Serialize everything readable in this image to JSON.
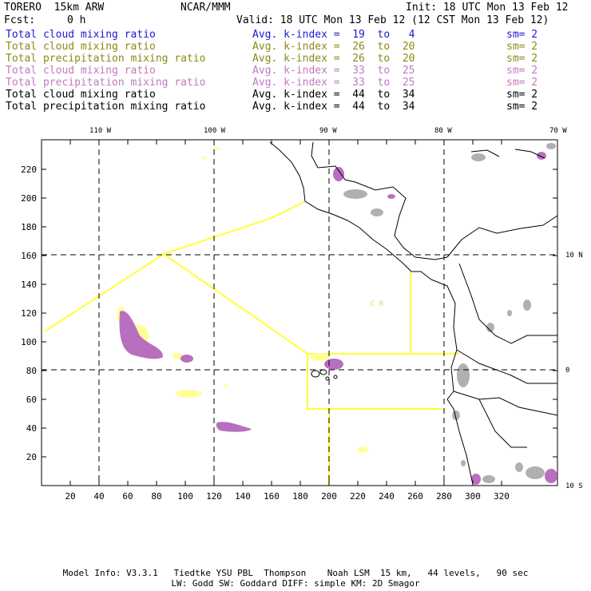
{
  "header": {
    "model": "TORERO  15km ARW",
    "center": "NCAR/MMM",
    "init": "Init: 18 UTC Mon 13 Feb 12",
    "fcst_label": "Fcst:",
    "fcst_value": "0 h",
    "valid": "Valid: 18 UTC Mon 13 Feb 12 (12 CST Mon 13 Feb 12)"
  },
  "legend": [
    {
      "field": "Total cloud mixing ratio",
      "kindex": "Avg. k-index =  19  to   4",
      "sm": "sm= 2",
      "color": "#1a1ad0"
    },
    {
      "field": "Total cloud mixing ratio",
      "kindex": "Avg. k-index =  26  to  20",
      "sm": "sm= 2",
      "color": "#8a8a1a"
    },
    {
      "field": "Total precipitation mixing ratio",
      "kindex": "Avg. k-index =  26  to  20",
      "sm": "sm= 2",
      "color": "#8a8a1a"
    },
    {
      "field": "Total cloud mixing ratio",
      "kindex": "Avg. k-index =  33  to  25",
      "sm": "sm= 2",
      "color": "#c07ac0"
    },
    {
      "field": "Total precipitation mixing ratio",
      "kindex": "Avg. k-index =  33  to  25",
      "sm": "sm= 2",
      "color": "#c07ac0"
    },
    {
      "field": "Total cloud mixing ratio",
      "kindex": "Avg. k-index =  44  to  34",
      "sm": "sm= 2",
      "color": "#000000"
    },
    {
      "field": "Total precipitation mixing ratio",
      "kindex": "Avg. k-index =  44  to  34",
      "sm": "sm= 2",
      "color": "#000000"
    }
  ],
  "map": {
    "lon_labels": [
      "110 W",
      "100 W",
      "90 W",
      "80 W",
      "70 W"
    ],
    "lat_labels": [
      "10 N",
      "0",
      "10 S"
    ],
    "x_ticks": [
      "20",
      "40",
      "60",
      "80",
      "100",
      "120",
      "140",
      "160",
      "180",
      "200",
      "220",
      "240",
      "260",
      "280",
      "300",
      "320"
    ],
    "y_ticks": [
      "20",
      "40",
      "60",
      "80",
      "100",
      "120",
      "140",
      "160",
      "180",
      "200",
      "220"
    ],
    "region_label": "C  R",
    "colors": {
      "coast": "#000000",
      "boundary_box": "#ffff33",
      "light_cloud": "#ffff99",
      "precip_mid": "#b86fbf",
      "heavy_cloud": "#b0b0b0"
    }
  },
  "footer": {
    "line1": "Model Info: V3.3.1   Tiedtke YSU PBL  Thompson    Noah LSM  15 km,   44 levels,   90 sec",
    "line2": "LW: Godd SW: Goddard DIFF: simple KM: 2D Smagor"
  }
}
